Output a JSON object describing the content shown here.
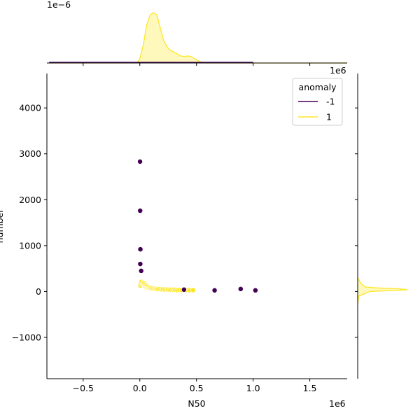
{
  "chart_data": {
    "type": "scatter",
    "xlabel": "N50",
    "ylabel": "number",
    "x_offset_label": "1e6",
    "x_scale": 1000000,
    "xlim": [
      -820000,
      1830000
    ],
    "ylim": [
      -1900,
      4750
    ],
    "xticks": [
      {
        "value": -500000,
        "label": "−0.5"
      },
      {
        "value": 0,
        "label": "0.0"
      },
      {
        "value": 500000,
        "label": "0.5"
      },
      {
        "value": 1000000,
        "label": "1.0"
      },
      {
        "value": 1500000,
        "label": "1.5"
      }
    ],
    "yticks": [
      {
        "value": -1000,
        "label": "−1000"
      },
      {
        "value": 0,
        "label": "0"
      },
      {
        "value": 1000,
        "label": "1000"
      },
      {
        "value": 2000,
        "label": "2000"
      },
      {
        "value": 3000,
        "label": "3000"
      },
      {
        "value": 4000,
        "label": "4000"
      }
    ],
    "legend": {
      "title": "anomaly",
      "placement": "top-right",
      "entries": [
        {
          "label": "-1",
          "color": "#440154"
        },
        {
          "label": "1",
          "color": "#fde725"
        }
      ]
    },
    "series": [
      {
        "name": "-1",
        "color": "#440154",
        "points": [
          [
            2000,
            2830
          ],
          [
            3000,
            1760
          ],
          [
            5000,
            920
          ],
          [
            4000,
            600
          ],
          [
            12000,
            450
          ],
          [
            390000,
            40
          ],
          [
            660000,
            25
          ],
          [
            890000,
            55
          ],
          [
            1020000,
            25
          ]
        ]
      },
      {
        "name": "1",
        "color": "#fde725",
        "points": [
          [
            5000,
            130
          ],
          [
            10000,
            180
          ],
          [
            15000,
            210
          ],
          [
            25000,
            160
          ],
          [
            30000,
            190
          ],
          [
            35000,
            140
          ],
          [
            40000,
            175
          ],
          [
            45000,
            120
          ],
          [
            50000,
            150
          ],
          [
            55000,
            100
          ],
          [
            60000,
            130
          ],
          [
            65000,
            90
          ],
          [
            70000,
            110
          ],
          [
            80000,
            95
          ],
          [
            85000,
            75
          ],
          [
            90000,
            85
          ],
          [
            100000,
            70
          ],
          [
            110000,
            80
          ],
          [
            120000,
            60
          ],
          [
            130000,
            65
          ],
          [
            140000,
            55
          ],
          [
            150000,
            60
          ],
          [
            160000,
            50
          ],
          [
            175000,
            55
          ],
          [
            190000,
            45
          ],
          [
            205000,
            50
          ],
          [
            220000,
            40
          ],
          [
            235000,
            45
          ],
          [
            250000,
            40
          ],
          [
            265000,
            35
          ],
          [
            280000,
            42
          ],
          [
            295000,
            35
          ],
          [
            310000,
            38
          ],
          [
            330000,
            30
          ],
          [
            350000,
            35
          ],
          [
            370000,
            30
          ],
          [
            420000,
            32
          ],
          [
            440000,
            28
          ],
          [
            470000,
            30
          ]
        ]
      }
    ],
    "marginal_top": {
      "offset_label": "1e−6",
      "series_color": "#fde725",
      "density_curve": [
        [
          -800000,
          0.0
        ],
        [
          -100000,
          0.0
        ],
        [
          -20000,
          0.02
        ],
        [
          0,
          0.08
        ],
        [
          30000,
          0.35
        ],
        [
          60000,
          0.75
        ],
        [
          90000,
          0.95
        ],
        [
          120000,
          1.0
        ],
        [
          150000,
          0.96
        ],
        [
          180000,
          0.7
        ],
        [
          210000,
          0.45
        ],
        [
          240000,
          0.32
        ],
        [
          270000,
          0.25
        ],
        [
          300000,
          0.22
        ],
        [
          330000,
          0.18
        ],
        [
          360000,
          0.14
        ],
        [
          390000,
          0.13
        ],
        [
          420000,
          0.14
        ],
        [
          450000,
          0.13
        ],
        [
          480000,
          0.09
        ],
        [
          510000,
          0.05
        ],
        [
          540000,
          0.02
        ],
        [
          580000,
          0.0
        ],
        [
          1830000,
          0.0
        ]
      ],
      "baseline_series_color": "#440154"
    },
    "marginal_right": {
      "offset_label": "1e6",
      "series_color": "#fde725",
      "density_curve": [
        [
          -300,
          0.0
        ],
        [
          -100,
          0.02
        ],
        [
          0,
          0.25
        ],
        [
          20,
          0.7
        ],
        [
          40,
          1.0
        ],
        [
          60,
          0.8
        ],
        [
          80,
          0.35
        ],
        [
          100,
          0.15
        ],
        [
          140,
          0.1
        ],
        [
          180,
          0.06
        ],
        [
          230,
          0.04
        ],
        [
          300,
          0.0
        ]
      ]
    }
  }
}
